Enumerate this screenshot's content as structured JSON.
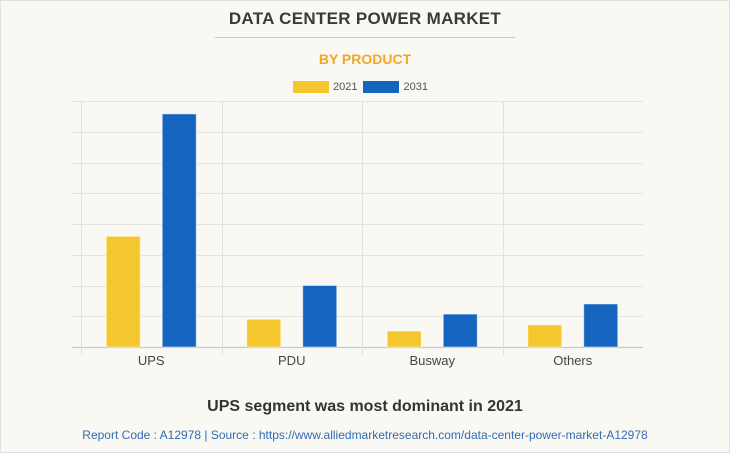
{
  "header": {
    "title": "DATA CENTER POWER MARKET",
    "subtitle": "BY PRODUCT"
  },
  "footer": {
    "insight": "UPS segment was most dominant in 2021",
    "source": "Report Code : A12978  |  Source : https://www.alliedmarketresearch.com/data-center-power-market-A12978"
  },
  "colors": {
    "series_2021": "#f5c72e",
    "series_2031": "#1565c0",
    "title": "#3a3a3a",
    "subtitle": "#f5a623",
    "source": "#2f6db5"
  },
  "chart_data": {
    "type": "bar",
    "title": "DATA CENTER POWER MARKET",
    "subtitle": "BY PRODUCT",
    "xlabel": "",
    "ylabel": "",
    "y_units": "relative (gridline intervals; no y-axis labels shown)",
    "ylim": [
      0,
      8
    ],
    "grid": true,
    "legend_position": "top-center",
    "categories": [
      "UPS",
      "PDU",
      "Busway",
      "Others"
    ],
    "series": [
      {
        "name": "2021",
        "color": "#f5c72e",
        "values": [
          3.6,
          0.9,
          0.52,
          0.72
        ]
      },
      {
        "name": "2031",
        "color": "#1565c0",
        "values": [
          7.58,
          2.0,
          1.07,
          1.4
        ]
      }
    ]
  }
}
